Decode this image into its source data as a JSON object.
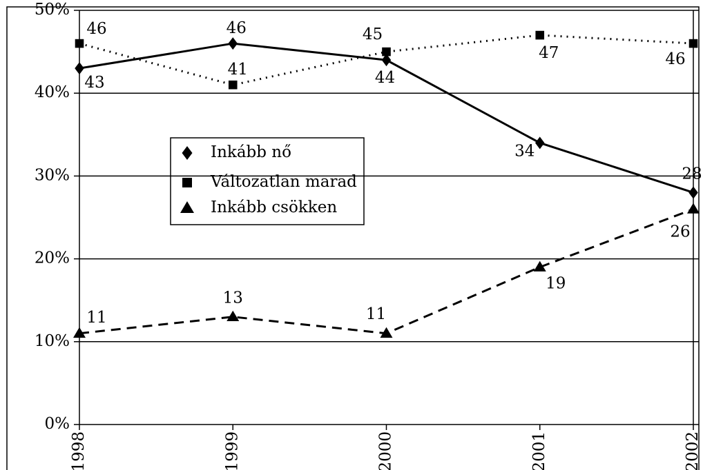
{
  "chart_data": {
    "type": "line",
    "x": [
      "1998",
      "1999",
      "2000",
      "2001",
      "2002"
    ],
    "series": [
      {
        "name": "Inkább nő",
        "color": "#000000",
        "dash": "solid",
        "marker": "diamond",
        "values": [
          43,
          46,
          44,
          34,
          28
        ]
      },
      {
        "name": "Változatlan marad",
        "color": "#000000",
        "dash": "dotted",
        "marker": "square",
        "values": [
          46,
          41,
          45,
          47,
          46
        ]
      },
      {
        "name": "Inkább csökken",
        "color": "#000000",
        "dash": "dashed",
        "marker": "triangle",
        "values": [
          11,
          13,
          11,
          19,
          26
        ]
      }
    ],
    "ylim": [
      0,
      50
    ],
    "yticks": [
      {
        "value": 0,
        "label": "0%"
      },
      {
        "value": 10,
        "label": "10%"
      },
      {
        "value": 20,
        "label": "20%"
      },
      {
        "value": 30,
        "label": "30%"
      },
      {
        "value": 40,
        "label": "40%"
      },
      {
        "value": 50,
        "label": "50%"
      }
    ],
    "grid": true
  }
}
